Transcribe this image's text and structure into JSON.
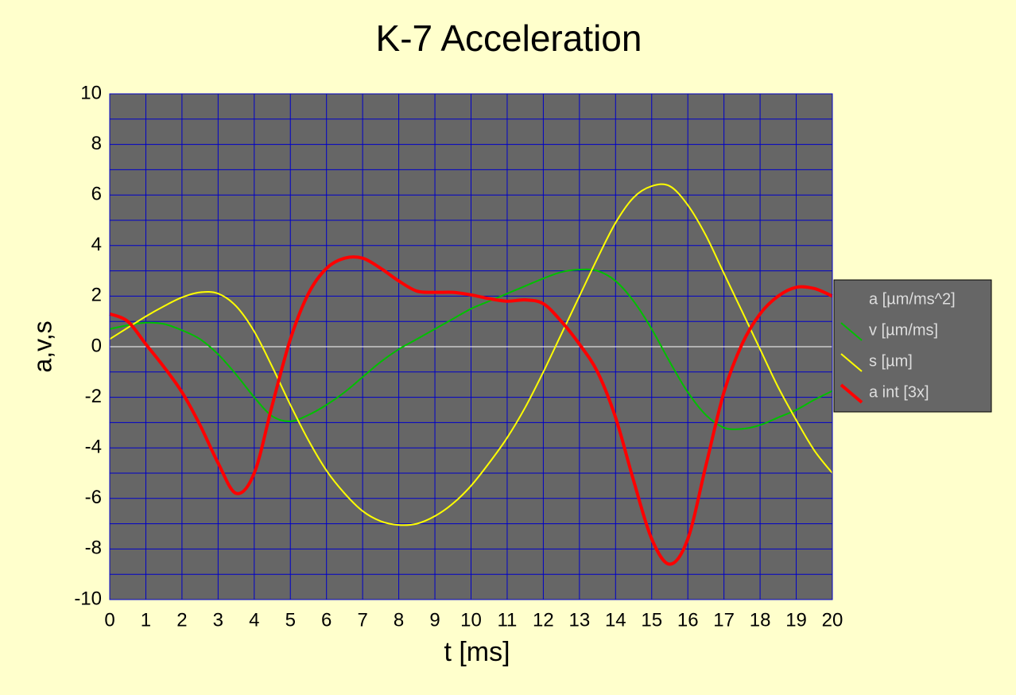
{
  "chart_data": {
    "type": "line",
    "title": "K-7 Acceleration",
    "x_label": "t [ms]",
    "y_label": "a,v,s",
    "x": [
      0,
      0.5,
      1,
      1.5,
      2,
      2.5,
      3,
      3.5,
      4,
      4.5,
      5,
      5.5,
      6,
      6.5,
      7,
      7.5,
      8,
      8.5,
      9,
      9.5,
      10,
      10.5,
      11,
      11.5,
      12,
      12.5,
      13,
      13.5,
      14,
      14.5,
      15,
      15.5,
      16,
      16.5,
      17,
      17.5,
      18,
      18.5,
      19,
      19.5,
      20
    ],
    "series": [
      {
        "name": "a [µm/ms^2]",
        "color": "#666666",
        "values": [
          null,
          null,
          null,
          null,
          null,
          null,
          null,
          null,
          null,
          null,
          null,
          null,
          null,
          null,
          null,
          null,
          null,
          null,
          null,
          null,
          null,
          null,
          null,
          null,
          null,
          null,
          null,
          null,
          null,
          null,
          null,
          null,
          null,
          null,
          null,
          null,
          null,
          null,
          null,
          null,
          null
        ]
      },
      {
        "name": "v [µm/ms]",
        "color": "#00c000",
        "values": [
          0.7,
          0.85,
          0.95,
          0.9,
          0.65,
          0.3,
          -0.3,
          -1.1,
          -2.0,
          -2.75,
          -2.95,
          -2.7,
          -2.3,
          -1.8,
          -1.2,
          -0.6,
          -0.1,
          0.3,
          0.7,
          1.1,
          1.5,
          1.8,
          2.1,
          2.4,
          2.7,
          2.95,
          3.05,
          3.0,
          2.6,
          1.8,
          0.7,
          -0.6,
          -1.8,
          -2.7,
          -3.2,
          -3.25,
          -3.1,
          -2.8,
          -2.5,
          -2.1,
          -1.75
        ]
      },
      {
        "name": "s [µm]",
        "color": "#ffff00",
        "values": [
          0.3,
          0.75,
          1.2,
          1.6,
          1.95,
          2.15,
          2.1,
          1.6,
          0.6,
          -0.8,
          -2.3,
          -3.7,
          -4.9,
          -5.8,
          -6.5,
          -6.9,
          -7.05,
          -7.0,
          -6.7,
          -6.2,
          -5.5,
          -4.6,
          -3.6,
          -2.4,
          -1.0,
          0.5,
          2.0,
          3.5,
          4.9,
          5.9,
          6.35,
          6.35,
          5.6,
          4.4,
          2.9,
          1.4,
          -0.1,
          -1.6,
          -2.9,
          -4.1,
          -5.0
        ]
      },
      {
        "name": "a int [3x]",
        "color": "#ff0000",
        "values": [
          1.3,
          1.0,
          0.1,
          -0.8,
          -1.8,
          -3.1,
          -4.6,
          -5.8,
          -5.0,
          -2.3,
          0.3,
          2.1,
          3.1,
          3.5,
          3.5,
          3.1,
          2.6,
          2.2,
          2.15,
          2.15,
          2.05,
          1.9,
          1.8,
          1.85,
          1.7,
          1.0,
          0.1,
          -1.0,
          -2.8,
          -5.3,
          -7.6,
          -8.6,
          -7.6,
          -4.7,
          -1.8,
          0.1,
          1.3,
          2.0,
          2.35,
          2.3,
          2.0
        ]
      }
    ],
    "xlim": [
      0,
      20
    ],
    "ylim": [
      -10,
      10
    ],
    "xticks": [
      0,
      1,
      2,
      3,
      4,
      5,
      6,
      7,
      8,
      9,
      10,
      11,
      12,
      13,
      14,
      15,
      16,
      17,
      18,
      19,
      20
    ],
    "yticks": [
      -10,
      -8,
      -6,
      -4,
      -2,
      0,
      2,
      4,
      6,
      8,
      10
    ],
    "grid": true,
    "legend": "right"
  }
}
